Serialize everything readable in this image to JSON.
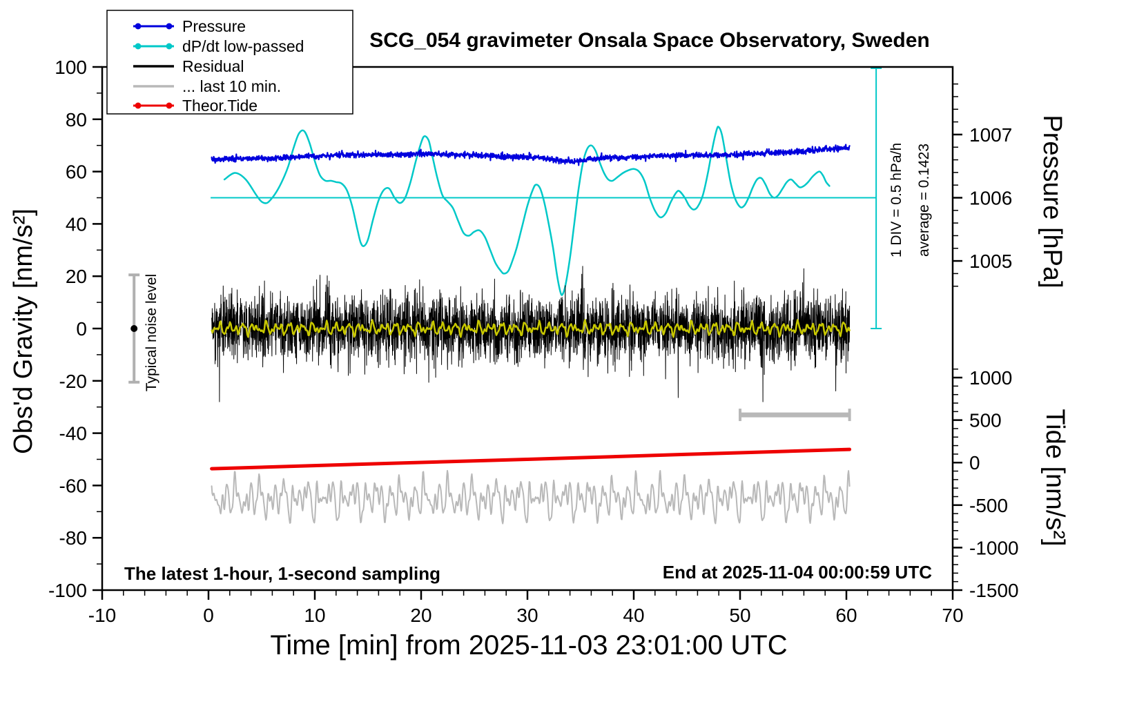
{
  "title": "SCG_054 gravimeter Onsala Space Observatory, Sweden",
  "axes": {
    "x": {
      "label": "Time [min] from 2025-11-03 23:01:00 UTC",
      "min": -10,
      "max": 70,
      "major": [
        -10,
        0,
        10,
        20,
        30,
        40,
        50,
        60,
        70
      ],
      "minor_step": 2
    },
    "y_left": {
      "label": "Obs'd Gravity [nm/s²]",
      "min": -100,
      "max": 100,
      "major": [
        -100,
        -80,
        -60,
        -40,
        -20,
        0,
        20,
        40,
        60,
        80,
        100
      ],
      "minor_step": 10
    },
    "y_right_pressure": {
      "label": "Pressure [hPa]",
      "major": [
        1005,
        1006,
        1007
      ],
      "minor_step": 0.2,
      "minor_range": [
        1004.6,
        1007.8
      ]
    },
    "y_right_tide": {
      "label": "Tide [nm/s²]",
      "major": [
        1000,
        500,
        0,
        -500,
        -1000,
        -1500
      ],
      "minor_step": 100,
      "minor_range": [
        -1500,
        1100
      ]
    }
  },
  "legend": [
    {
      "label": "Pressure",
      "color": "#0000dd",
      "dots": true
    },
    {
      "label": "dP/dt low-passed",
      "color": "#00c8c8",
      "dots": true
    },
    {
      "label": "Residual",
      "color": "#000000",
      "dots": false
    },
    {
      "label": "... last 10 min.",
      "color": "#b8b8b8",
      "dots": false
    },
    {
      "label": "Theor.Tide",
      "color": "#ee0000",
      "dots": true
    }
  ],
  "annotations": {
    "div_scale": "1 DIV = 0.5 hPa/h",
    "average": "average = 0.1423",
    "noise_level": "Typical noise level",
    "footer_left": "The latest 1-hour, 1-second sampling",
    "footer_right": "End at 2025-11-04 00:00:59 UTC"
  },
  "chart_data": {
    "type": "line",
    "x_units": "minutes from 2025-11-03 23:01:00 UTC",
    "y_units_left": "nm/s^2 (Obs'd Gravity axis, -100..100)",
    "calibration": {
      "pressure_g_at_1006": 50,
      "gravity_units_per_hPa": 24.16,
      "tide_g_at_minus1500": -100,
      "gravity_units_per_tide_unit": 0.0325
    },
    "series": [
      {
        "name": "Pressure",
        "color": "#0000dd",
        "style": "noisy-line",
        "approx_value_hPa": 1006.6,
        "noise_sd": 0.5,
        "n_points": 2200,
        "t_range": [
          0.3,
          60.3
        ],
        "control_points": [
          [
            0.3,
            64.6
          ],
          [
            2,
            64.8
          ],
          [
            4,
            65.0
          ],
          [
            6,
            65.2
          ],
          [
            8,
            65.6
          ],
          [
            10,
            66.0
          ],
          [
            12,
            66.3
          ],
          [
            14,
            66.3
          ],
          [
            16,
            66.5
          ],
          [
            18,
            66.6
          ],
          [
            20,
            66.8
          ],
          [
            22,
            66.6
          ],
          [
            24,
            66.4
          ],
          [
            26,
            66.2
          ],
          [
            28,
            65.8
          ],
          [
            30,
            65.6
          ],
          [
            31.5,
            65.0
          ],
          [
            33,
            64.2
          ],
          [
            34,
            63.9
          ],
          [
            35,
            64.2
          ],
          [
            36,
            64.8
          ],
          [
            37,
            65.3
          ],
          [
            38,
            65.4
          ],
          [
            39,
            65.2
          ],
          [
            40,
            65.6
          ],
          [
            42,
            66.0
          ],
          [
            44,
            66.1
          ],
          [
            46,
            66.2
          ],
          [
            48,
            66.3
          ],
          [
            50,
            66.6
          ],
          [
            52,
            67.0
          ],
          [
            54,
            67.3
          ],
          [
            56,
            67.8
          ],
          [
            58,
            68.4
          ],
          [
            59.5,
            68.9
          ],
          [
            60.3,
            69.0
          ]
        ]
      },
      {
        "name": "dP/dt low-passed",
        "color": "#00c8c8",
        "style": "smooth-line",
        "zero_line_gravity": 50,
        "zero_line_t_range": [
          0.2,
          62.8
        ],
        "scale_line": {
          "x": 62.8,
          "g_top": 99.5,
          "g_bottom": 0
        },
        "average_hPa_per_h": 0.1423,
        "div_scale": "1 DIV = 0.5 hPa/h",
        "control_points": [
          [
            1.5,
            57
          ],
          [
            2.5,
            59.5
          ],
          [
            3.5,
            57
          ],
          [
            4.5,
            51
          ],
          [
            5,
            48.5
          ],
          [
            5.5,
            48
          ],
          [
            6,
            50
          ],
          [
            6.5,
            53
          ],
          [
            7,
            57
          ],
          [
            7.5,
            62
          ],
          [
            8,
            69
          ],
          [
            8.5,
            74.5
          ],
          [
            9,
            75.5
          ],
          [
            9.5,
            71
          ],
          [
            10,
            64
          ],
          [
            10.5,
            58.5
          ],
          [
            11,
            56.5
          ],
          [
            11.5,
            56.5
          ],
          [
            12,
            56
          ],
          [
            12.5,
            55.5
          ],
          [
            13,
            53
          ],
          [
            13.5,
            47
          ],
          [
            14,
            38
          ],
          [
            14.3,
            33
          ],
          [
            14.6,
            31.5
          ],
          [
            15,
            34
          ],
          [
            15.5,
            42
          ],
          [
            16,
            49
          ],
          [
            16.5,
            53
          ],
          [
            17,
            53.5
          ],
          [
            17.5,
            50
          ],
          [
            18,
            48
          ],
          [
            18.5,
            50
          ],
          [
            19,
            56
          ],
          [
            19.5,
            64
          ],
          [
            20,
            71
          ],
          [
            20.3,
            73.5
          ],
          [
            20.7,
            72
          ],
          [
            21,
            67
          ],
          [
            21.5,
            58
          ],
          [
            22,
            51
          ],
          [
            22.5,
            48.5
          ],
          [
            23,
            46
          ],
          [
            23.5,
            41
          ],
          [
            24,
            36.5
          ],
          [
            24.5,
            35.5
          ],
          [
            25,
            37
          ],
          [
            25.5,
            37.5
          ],
          [
            26,
            35
          ],
          [
            26.5,
            30
          ],
          [
            27,
            25
          ],
          [
            27.5,
            22
          ],
          [
            27.8,
            21
          ],
          [
            28.2,
            22
          ],
          [
            28.6,
            26
          ],
          [
            29,
            31
          ],
          [
            29.5,
            39
          ],
          [
            30,
            47
          ],
          [
            30.5,
            53
          ],
          [
            30.8,
            55
          ],
          [
            31.2,
            53.5
          ],
          [
            31.6,
            48
          ],
          [
            32,
            40
          ],
          [
            32.4,
            31
          ],
          [
            32.8,
            20
          ],
          [
            33.1,
            14
          ],
          [
            33.3,
            13
          ],
          [
            33.6,
            17
          ],
          [
            34,
            27
          ],
          [
            34.4,
            40
          ],
          [
            34.8,
            53
          ],
          [
            35.2,
            63
          ],
          [
            35.6,
            68.5
          ],
          [
            36,
            70
          ],
          [
            36.4,
            68
          ],
          [
            36.8,
            63.5
          ],
          [
            37.2,
            59.5
          ],
          [
            37.6,
            57
          ],
          [
            38,
            56.5
          ],
          [
            38.5,
            58
          ],
          [
            39,
            59.5
          ],
          [
            39.5,
            60.5
          ],
          [
            40,
            61
          ],
          [
            40.5,
            60
          ],
          [
            41,
            56.5
          ],
          [
            41.5,
            50
          ],
          [
            42,
            45
          ],
          [
            42.5,
            42.5
          ],
          [
            43,
            44
          ],
          [
            43.5,
            48.5
          ],
          [
            44,
            52
          ],
          [
            44.3,
            52.5
          ],
          [
            44.8,
            50
          ],
          [
            45.2,
            47
          ],
          [
            45.6,
            45.5
          ],
          [
            46,
            46.5
          ],
          [
            46.5,
            51
          ],
          [
            47,
            60
          ],
          [
            47.4,
            69
          ],
          [
            47.8,
            76
          ],
          [
            48,
            77
          ],
          [
            48.3,
            74
          ],
          [
            48.7,
            65
          ],
          [
            49.1,
            56
          ],
          [
            49.5,
            50
          ],
          [
            50,
            46.5
          ],
          [
            50.4,
            47
          ],
          [
            50.8,
            50
          ],
          [
            51.2,
            54
          ],
          [
            51.6,
            57
          ],
          [
            52,
            57.5
          ],
          [
            52.4,
            55
          ],
          [
            52.8,
            51.5
          ],
          [
            53.2,
            50
          ],
          [
            53.6,
            51
          ],
          [
            54,
            53.5
          ],
          [
            54.4,
            56
          ],
          [
            54.8,
            57
          ],
          [
            55.2,
            55.5
          ],
          [
            55.6,
            54
          ],
          [
            56,
            54.5
          ],
          [
            56.4,
            56
          ],
          [
            56.8,
            58
          ],
          [
            57.2,
            59.5
          ],
          [
            57.5,
            60
          ],
          [
            57.8,
            58.5
          ],
          [
            58.1,
            56
          ],
          [
            58.4,
            54.5
          ]
        ]
      },
      {
        "name": "Residual",
        "color": "#000000",
        "style": "dense-noise",
        "baseline": 0,
        "noise_sd": 6.3,
        "spike_prob": 0.006,
        "spike_gain": 2.0,
        "clip": 28,
        "n_points": 3600,
        "t_range": [
          0.3,
          60.3
        ]
      },
      {
        "name": "Residual low-passed",
        "color": "#c8c800",
        "style": "sine-mix",
        "baseline": 0,
        "freqs": [
          0.9,
          1.4,
          2.1,
          3.3
        ],
        "amps": [
          1.2,
          1.0,
          0.8,
          0.6
        ],
        "n_points": 700,
        "t_range": [
          0.3,
          60.3
        ]
      },
      {
        "name": "... last 10 min.",
        "color": "#b8b8b8",
        "style": "sine-mix",
        "baseline": -65,
        "freqs": [
          0.9,
          1.3,
          1.8,
          2.6,
          3.5,
          0.45
        ],
        "amps": [
          3.2,
          2.8,
          2.4,
          1.8,
          1.2,
          2.0
        ],
        "n_points": 1200,
        "t_range": [
          0.3,
          60.3
        ]
      },
      {
        "name": "Theor.Tide",
        "color": "#ee0000",
        "style": "thick-line",
        "points": [
          [
            0.3,
            -53.6
          ],
          [
            15,
            -51.8
          ],
          [
            30,
            -50.0
          ],
          [
            45,
            -48.1
          ],
          [
            60.3,
            -46.2
          ]
        ]
      }
    ],
    "markers": {
      "noise_bar": {
        "x": -7,
        "center": 0,
        "half_height": 20.5,
        "bar_color": "#b0b0b0",
        "dot_color": "#000000"
      },
      "window_bar": {
        "g": -33,
        "t0": 50,
        "t1": 60.3,
        "color": "#b8b8b8"
      }
    }
  }
}
